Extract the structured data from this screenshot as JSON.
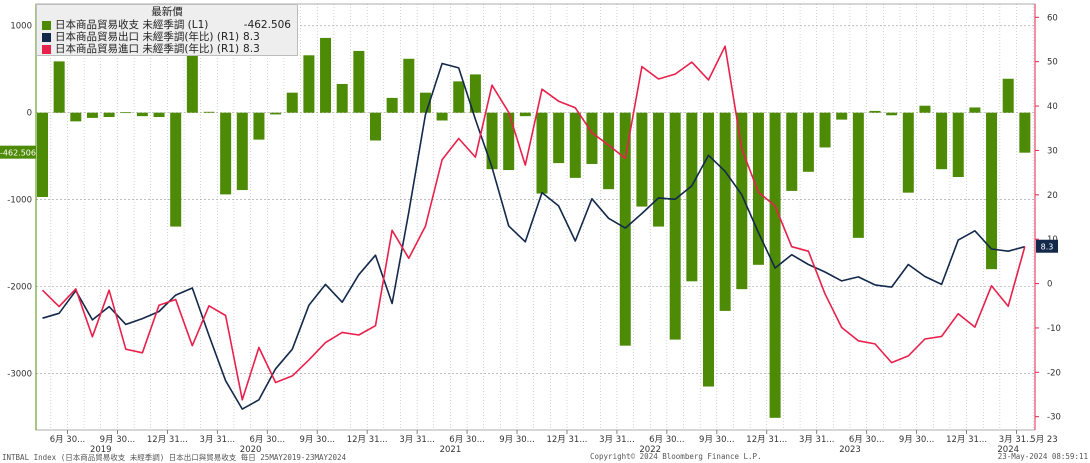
{
  "colors": {
    "balance": "#4d8a06",
    "exports": "#13294b",
    "imports": "#e8214c",
    "axis_left": "#4d8a06",
    "axis_right": "#e8214c",
    "grid": "#aaaaaa"
  },
  "legend": {
    "header": "最新價",
    "items": [
      {
        "label": "日本商品貿易收支 未經季調 (L1)",
        "value": "-462.506",
        "color": "#4d8a06"
      },
      {
        "label": "日本商品貿易出口 未經季調(年比) (R1)",
        "value": "8.3",
        "color": "#13294b"
      },
      {
        "label": "日本商品貿易進口 未經季調(年比) (R1)",
        "value": "8.3",
        "color": "#e8214c"
      }
    ]
  },
  "badges": {
    "left": "-462.506",
    "right": "8.3"
  },
  "footer": {
    "left": "INTBAL Index (日本商品貿易收支 未經季調) 日本出口與貿易收支  每日 25MAY2019-23MAY2024",
    "center": "Copyright© 2024 Bloomberg Finance L.P.",
    "right": "23-May-2024 08:59:11"
  },
  "chart_data": {
    "type": "bar",
    "x": [
      "2019-05",
      "2019-06",
      "2019-07",
      "2019-08",
      "2019-09",
      "2019-10",
      "2019-11",
      "2019-12",
      "2020-01",
      "2020-02",
      "2020-03",
      "2020-04",
      "2020-05",
      "2020-06",
      "2020-07",
      "2020-08",
      "2020-09",
      "2020-10",
      "2020-11",
      "2020-12",
      "2021-01",
      "2021-02",
      "2021-03",
      "2021-04",
      "2021-05",
      "2021-06",
      "2021-07",
      "2021-08",
      "2021-09",
      "2021-10",
      "2021-11",
      "2021-12",
      "2022-01",
      "2022-02",
      "2022-03",
      "2022-04",
      "2022-05",
      "2022-06",
      "2022-07",
      "2022-08",
      "2022-09",
      "2022-10",
      "2022-11",
      "2022-12",
      "2023-01",
      "2023-02",
      "2023-03",
      "2023-04",
      "2023-05",
      "2023-06",
      "2023-07",
      "2023-08",
      "2023-09",
      "2023-10",
      "2023-11",
      "2023-12",
      "2024-01",
      "2024-02",
      "2024-03",
      "2024-04"
    ],
    "series": [
      {
        "name": "日本商品貿易收支 未經季調 (L1)",
        "type": "bar",
        "axis": "left",
        "color": "#4d8a06",
        "values": [
          -970,
          590,
          -100,
          -60,
          -50,
          5,
          -40,
          -50,
          -1310,
          1100,
          10,
          -940,
          -890,
          -310,
          -20,
          230,
          660,
          860,
          330,
          710,
          -320,
          170,
          620,
          230,
          -90,
          360,
          440,
          -650,
          -660,
          -40,
          -930,
          -580,
          -750,
          -590,
          -880,
          -2680,
          -1080,
          -1310,
          -2610,
          -1940,
          -3150,
          -2280,
          -2030,
          -1750,
          -3510,
          -900,
          -680,
          -400,
          -80,
          -1440,
          20,
          -30,
          -920,
          80,
          -650,
          -740,
          60,
          -1800,
          390,
          -460
        ]
      },
      {
        "name": "日本商品貿易出口 未經季調(年比) (R1)",
        "type": "line",
        "axis": "right",
        "color": "#13294b",
        "values": [
          -7.8,
          -6.7,
          -1.6,
          -8.2,
          -5.2,
          -9.2,
          -7.9,
          -6.3,
          -2.6,
          -1,
          -11.7,
          -21.9,
          -28.3,
          -26.2,
          -19.2,
          -14.8,
          -4.9,
          -0.2,
          -4.2,
          2,
          6.4,
          -4.5,
          16.1,
          38,
          49.6,
          48.6,
          37,
          26.2,
          13,
          9.4,
          20.5,
          17.5,
          9.6,
          19.1,
          14.7,
          12.5,
          15.8,
          19.3,
          19,
          22,
          28.9,
          25.3,
          20,
          11.5,
          3.5,
          6.5,
          4.3,
          2.6,
          0.6,
          1.5,
          -0.3,
          -0.8,
          4.3,
          1.6,
          -0.2,
          9.8,
          11.9,
          7.8,
          7.3,
          8.3
        ]
      },
      {
        "name": "日本商品貿易進口 未經季調(年比) (R1)",
        "type": "line",
        "axis": "right",
        "color": "#e8214c",
        "values": [
          -1.5,
          -5.2,
          -1.2,
          -12,
          -1.5,
          -14.8,
          -15.6,
          -4.9,
          -3.6,
          -14,
          -5,
          -7.2,
          -26.2,
          -14.4,
          -22.3,
          -20.8,
          -17.2,
          -13.3,
          -11,
          -11.6,
          -9.5,
          12,
          5.7,
          12.9,
          27.9,
          32.7,
          28.5,
          44.7,
          38.6,
          26.7,
          43.8,
          41.1,
          39.6,
          34,
          31.2,
          28.2,
          48.9,
          46.1,
          47.2,
          49.9,
          45.9,
          53.5,
          30.3,
          20.6,
          17.5,
          8.3,
          7.3,
          -2.3,
          -9.9,
          -12.9,
          -13.6,
          -17.8,
          -16.3,
          -12.5,
          -11.9,
          -6.8,
          -9.8,
          -0.5,
          -5.1,
          8.3
        ]
      }
    ],
    "y_left": {
      "min": -3650,
      "max": 1250,
      "ticks": [
        -3000,
        -2000,
        -1000,
        0,
        1000
      ]
    },
    "y_right": {
      "min": -33,
      "max": 63,
      "ticks": [
        -30,
        -20,
        -10,
        0,
        10,
        20,
        30,
        40,
        50,
        60
      ]
    },
    "x_tick_labels": [
      "6月 30...",
      "9月 30...",
      "12月 31...",
      "3月 31...",
      "6月 30...",
      "9月 30...",
      "12月 31...",
      "3月 31...",
      "6月 30...",
      "9月 30...",
      "12月 31...",
      "3月 31...",
      "6月 30...",
      "9月 30...",
      "12月 31...",
      "3月 31...",
      "6月 30...",
      "9月 30...",
      "12月 31...",
      "3月 31..."
    ],
    "x_end_label": "5月 23",
    "year_labels": [
      "2019",
      "2020",
      "2021",
      "2022",
      "2023",
      "2024"
    ],
    "grid": true,
    "legend_position": "top-left"
  }
}
